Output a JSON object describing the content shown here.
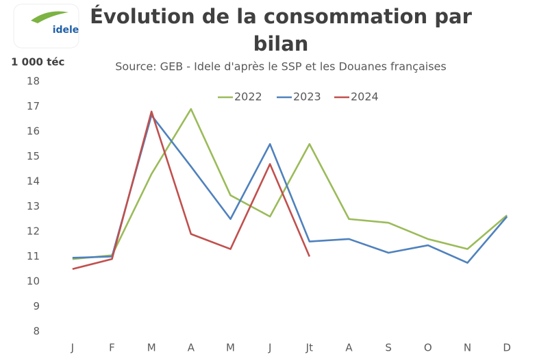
{
  "logo_text": "idele",
  "chart_data": {
    "type": "line",
    "title": "Évolution de la consommation par bilan",
    "subtitle": "Source: GEB - Idele d'après le SSP et les Douanes françaises",
    "y_label": "1 000 téc",
    "categories": [
      "J",
      "F",
      "M",
      "A",
      "M",
      "J",
      "Jt",
      "A",
      "S",
      "O",
      "N",
      "D"
    ],
    "series": [
      {
        "name": "2022",
        "color": "#9bbb59",
        "values": [
          10.9,
          11.05,
          14.3,
          16.9,
          13.45,
          12.6,
          15.5,
          12.5,
          12.35,
          11.7,
          11.3,
          12.65
        ]
      },
      {
        "name": "2023",
        "color": "#4f81bd",
        "values": [
          10.95,
          11.0,
          16.65,
          14.6,
          12.5,
          15.5,
          11.6,
          11.7,
          11.15,
          11.45,
          10.75,
          12.6
        ]
      },
      {
        "name": "2024",
        "color": "#c0504d",
        "values": [
          10.5,
          10.9,
          16.8,
          11.9,
          11.3,
          14.7,
          11.0,
          null,
          null,
          null,
          null,
          null
        ]
      }
    ],
    "ylim": [
      8,
      18
    ],
    "yticks": [
      8,
      9,
      10,
      11,
      12,
      13,
      14,
      15,
      16,
      17,
      18
    ],
    "grid": false,
    "legend": "top"
  }
}
